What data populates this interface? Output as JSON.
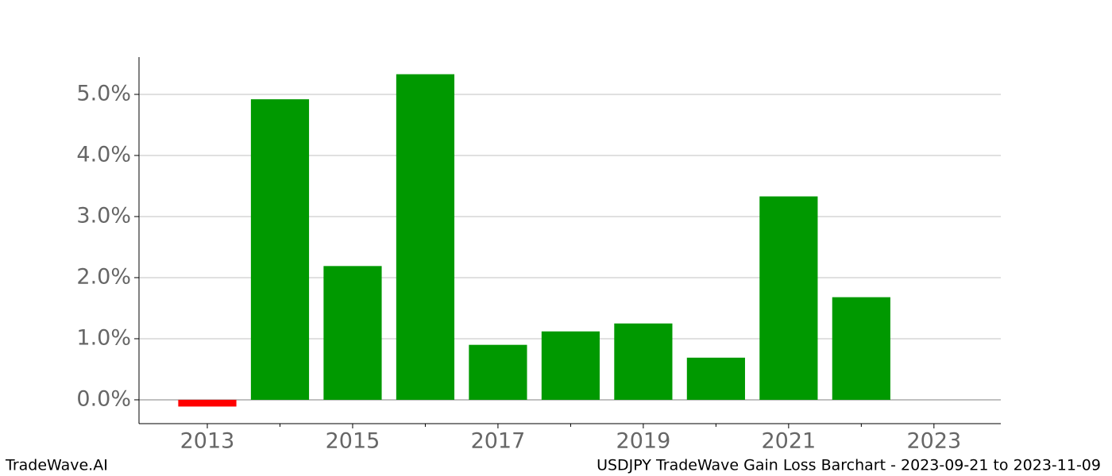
{
  "chart_data": {
    "type": "bar",
    "title": "USDJPY TradeWave Gain Loss Barchart - 2023-09-21 to 2023-11-09",
    "brand": "TradeWave.AI",
    "x": [
      2013,
      2014,
      2015,
      2016,
      2017,
      2018,
      2019,
      2020,
      2021,
      2022
    ],
    "values": [
      -0.11,
      4.92,
      2.19,
      5.33,
      0.9,
      1.12,
      1.25,
      0.69,
      3.33,
      1.68
    ],
    "color": "#009900",
    "negative_color": "#ff0000",
    "xlim": [
      2012.06,
      2023.92
    ],
    "xticks": [
      2013,
      2015,
      2017,
      2019,
      2021,
      2023
    ],
    "xminorticks": [
      2014,
      2016,
      2018,
      2020,
      2022
    ],
    "ylim": [
      -0.39,
      5.61
    ],
    "yticks": [
      {
        "value": 0,
        "label": "0.0%"
      },
      {
        "value": 1,
        "label": "1.0%"
      },
      {
        "value": 2,
        "label": "2.0%"
      },
      {
        "value": 3,
        "label": "3.0%"
      },
      {
        "value": 4,
        "label": "4.0%"
      },
      {
        "value": 5,
        "label": "5.0%"
      }
    ],
    "grid": true
  }
}
